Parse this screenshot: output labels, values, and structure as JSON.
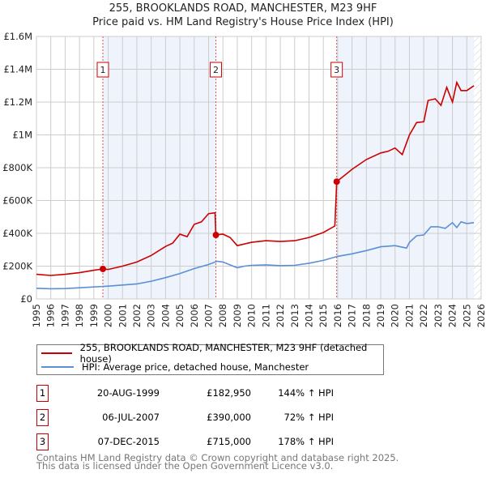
{
  "title": "255, BROOKLANDS ROAD, MANCHESTER, M23 9HF",
  "subtitle": "Price paid vs. HM Land Registry's House Price Index (HPI)",
  "chart_data": {
    "type": "line",
    "xlim": [
      1995,
      2026
    ],
    "ylim": [
      0,
      1600000
    ],
    "x_ticks": [
      "1995",
      "1996",
      "1997",
      "1998",
      "1999",
      "2000",
      "2001",
      "2002",
      "2003",
      "2004",
      "2005",
      "2006",
      "2007",
      "2008",
      "2009",
      "2010",
      "2011",
      "2012",
      "2013",
      "2014",
      "2015",
      "2016",
      "2017",
      "2018",
      "2019",
      "2020",
      "2021",
      "2022",
      "2023",
      "2024",
      "2025",
      "2026"
    ],
    "y_ticks": [
      {
        "v": 0,
        "l": "£0"
      },
      {
        "v": 200000,
        "l": "£200K"
      },
      {
        "v": 400000,
        "l": "£400K"
      },
      {
        "v": 600000,
        "l": "£600K"
      },
      {
        "v": 800000,
        "l": "£800K"
      },
      {
        "v": 1000000,
        "l": "£1M"
      },
      {
        "v": 1200000,
        "l": "£1.2M"
      },
      {
        "v": 1400000,
        "l": "£1.4M"
      },
      {
        "v": 1600000,
        "l": "£1.6M"
      }
    ],
    "shaded_ranges": [
      [
        1999.63,
        2007.51
      ],
      [
        2015.93,
        2025.5
      ]
    ],
    "hatched_from": 2025.5,
    "series": [
      {
        "name": "255, BROOKLANDS ROAD, MANCHESTER, M23 9HF (detached house)",
        "color": "#cc0000",
        "x": [
          1995,
          1996,
          1997,
          1998,
          1999,
          1999.63,
          2000,
          2001,
          2002,
          2003,
          2004,
          2004.5,
          2005,
          2005.5,
          2006,
          2006.5,
          2007,
          2007.45,
          2007.51,
          2008,
          2008.5,
          2009,
          2010,
          2011,
          2012,
          2013,
          2014,
          2015,
          2015.8,
          2015.93,
          2016.5,
          2017,
          2018,
          2019,
          2019.5,
          2020,
          2020.5,
          2021,
          2021.5,
          2022,
          2022.3,
          2022.8,
          2023.2,
          2023.6,
          2024,
          2024.3,
          2024.6,
          2025,
          2025.5
        ],
        "y": [
          150000,
          143000,
          150000,
          160000,
          175000,
          182950,
          180000,
          200000,
          225000,
          265000,
          320000,
          340000,
          395000,
          380000,
          455000,
          470000,
          520000,
          525000,
          390000,
          395000,
          375000,
          325000,
          345000,
          355000,
          350000,
          355000,
          375000,
          405000,
          445000,
          715000,
          755000,
          790000,
          850000,
          890000,
          900000,
          920000,
          880000,
          1000000,
          1075000,
          1080000,
          1210000,
          1220000,
          1180000,
          1290000,
          1200000,
          1320000,
          1270000,
          1270000,
          1300000
        ]
      },
      {
        "name": "HPI: Average price, detached house, Manchester",
        "color": "#5b8fd6",
        "x": [
          1995,
          1996,
          1997,
          1998,
          1999,
          2000,
          2001,
          2002,
          2003,
          2004,
          2005,
          2006,
          2007,
          2007.6,
          2008,
          2009,
          2009.5,
          2010,
          2011,
          2012,
          2013,
          2014,
          2015,
          2016,
          2017,
          2018,
          2019,
          2020,
          2020.8,
          2021,
          2021.5,
          2022,
          2022.5,
          2023,
          2023.5,
          2024,
          2024.3,
          2024.6,
          2025,
          2025.5
        ],
        "y": [
          65000,
          62000,
          63000,
          68000,
          73000,
          78000,
          85000,
          92000,
          108000,
          130000,
          155000,
          185000,
          210000,
          230000,
          225000,
          190000,
          200000,
          205000,
          208000,
          203000,
          205000,
          218000,
          235000,
          260000,
          275000,
          295000,
          318000,
          325000,
          310000,
          345000,
          385000,
          390000,
          440000,
          440000,
          430000,
          465000,
          435000,
          470000,
          460000,
          465000
        ]
      }
    ],
    "sales": [
      {
        "n": "1",
        "x": 1999.63,
        "y": 182950,
        "date": "20-AUG-1999",
        "price": "£182,950",
        "hpi": "144% ↑ HPI"
      },
      {
        "n": "2",
        "x": 2007.51,
        "y": 390000,
        "date": "06-JUL-2007",
        "price": "£390,000",
        "hpi": "72% ↑ HPI"
      },
      {
        "n": "3",
        "x": 2015.93,
        "y": 715000,
        "date": "07-DEC-2015",
        "price": "£715,000",
        "hpi": "178% ↑ HPI"
      }
    ]
  },
  "legend": {
    "item1": "255, BROOKLANDS ROAD, MANCHESTER, M23 9HF (detached house)",
    "item2": "HPI: Average price, detached house, Manchester"
  },
  "footer": {
    "line1": "Contains HM Land Registry data © Crown copyright and database right 2025.",
    "line2": "This data is licensed under the Open Government Licence v3.0."
  }
}
